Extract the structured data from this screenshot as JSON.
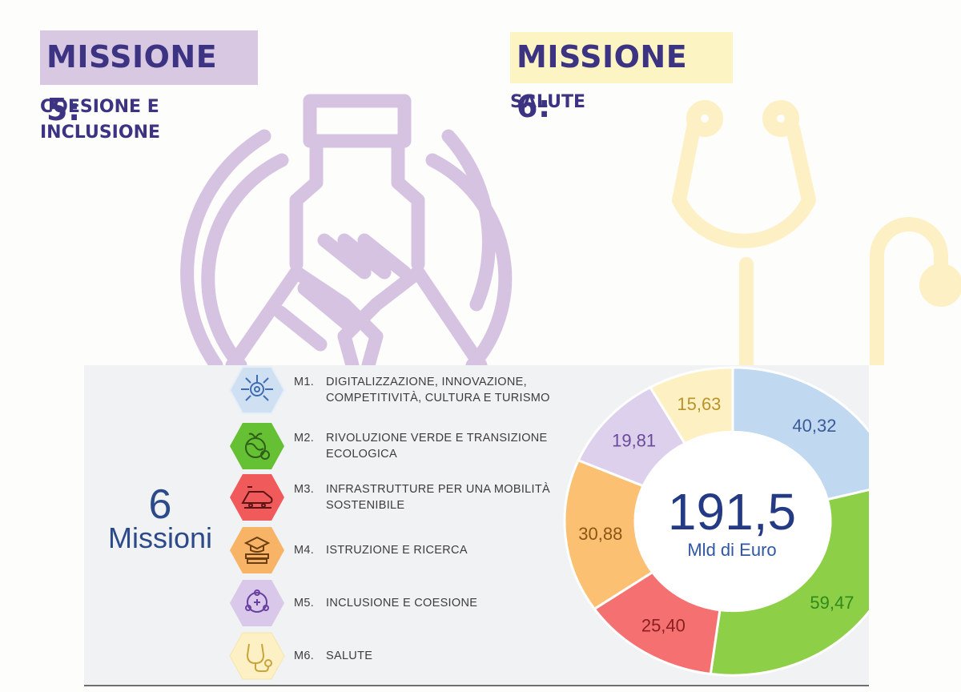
{
  "header": {
    "mission5": {
      "title": "MISSIONE 5:",
      "subtitle": "COESIONE E INCLUSIONE"
    },
    "mission6": {
      "title": "MISSIONE 6:",
      "subtitle": "SALUTE"
    }
  },
  "summary": {
    "count": "6",
    "count_label": "Missioni",
    "total": "191,5",
    "unit": "Mld di Euro"
  },
  "legend": [
    {
      "code": "M1.",
      "label": "DIGITALIZZAZIONE, INNOVAZIONE, COMPETITIVITÀ, CULTURA E TURISMO",
      "icon": "digital-network-icon",
      "color": "#c9ddf0"
    },
    {
      "code": "M2.",
      "label": "RIVOLUZIONE VERDE E TRANSIZIONE ECOLOGICA",
      "icon": "green-globe-icon",
      "color": "#6dc23a"
    },
    {
      "code": "M3.",
      "label": "INFRASTRUTTURE PER UNA MOBILITÀ SOSTENIBILE",
      "icon": "train-icon",
      "color": "#f25f5c"
    },
    {
      "code": "M4.",
      "label": "ISTRUZIONE E RICERCA",
      "icon": "graduation-books-icon",
      "color": "#f9b66a"
    },
    {
      "code": "M5.",
      "label": "INCLUSIONE E COESIONE",
      "icon": "people-circle-icon",
      "color": "#dccdeb"
    },
    {
      "code": "M6.",
      "label": "SALUTE",
      "icon": "stethoscope-icon",
      "color": "#fdf0c0"
    }
  ],
  "chart_data": {
    "type": "pie",
    "subtype": "donut",
    "title": "",
    "center_text": {
      "value": "191,5",
      "unit": "Mld di Euro"
    },
    "categories": [
      "M1.",
      "M2.",
      "M3.",
      "M4.",
      "M5.",
      "M6."
    ],
    "values": [
      40.32,
      59.47,
      25.4,
      30.88,
      19.81,
      15.63
    ],
    "value_labels": [
      "40,32",
      "59,47",
      "25,40",
      "30,88",
      "19,81",
      "15,63"
    ],
    "colors": [
      "#c0d8f0",
      "#8dcf46",
      "#f57171",
      "#fbc072",
      "#ddd0ec",
      "#fdf1c3"
    ],
    "label_colors": [
      "#3a5a9a",
      "#2f8a1c",
      "#8a1f1f",
      "#8a5516",
      "#6b4a9a",
      "#b8942a"
    ]
  }
}
